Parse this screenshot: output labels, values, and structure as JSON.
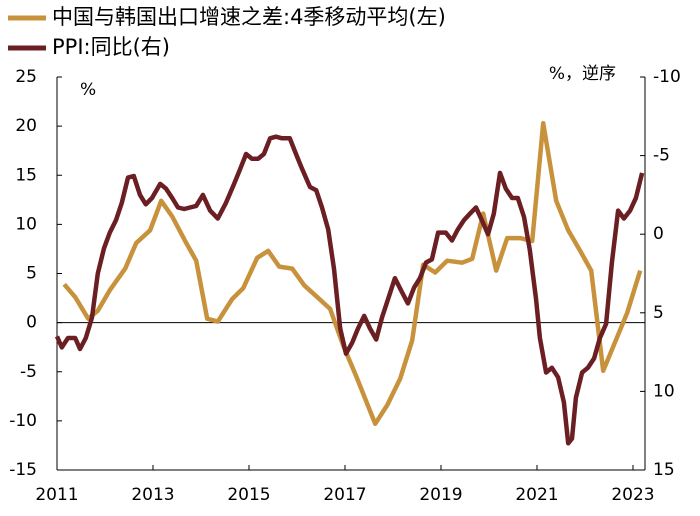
{
  "chart_data": {
    "type": "line",
    "y_label": "%",
    "y2_label": "%，逆序",
    "xlim": [
      2011,
      2023.25
    ],
    "xticks": [
      2011,
      2013,
      2015,
      2017,
      2019,
      2021,
      2023
    ],
    "ylim": [
      -15,
      25
    ],
    "yticks": [
      -15,
      -10,
      -5,
      0,
      5,
      10,
      15,
      20,
      25
    ],
    "y2lim": [
      15,
      -10
    ],
    "y2ticks": [
      -10,
      -5,
      0,
      5,
      10,
      15
    ],
    "legend": "top-left",
    "series": [
      {
        "name": "中国与韩国出口增速之差:4季移动平均(左)",
        "color": "#c8923c",
        "axis": "y",
        "x": [
          2011.15,
          2011.38,
          2011.65,
          2011.85,
          2012.1,
          2012.42,
          2012.65,
          2012.94,
          2013.17,
          2013.4,
          2013.67,
          2013.9,
          2014.13,
          2014.35,
          2014.65,
          2014.88,
          2015.17,
          2015.4,
          2015.63,
          2015.9,
          2016.15,
          2016.42,
          2016.69,
          2016.96,
          2017.23,
          2017.63,
          2017.88,
          2018.15,
          2018.4,
          2018.63,
          2018.88,
          2019.13,
          2019.44,
          2019.65,
          2019.88,
          2020.15,
          2020.38,
          2020.65,
          2020.9,
          2021.13,
          2021.4,
          2021.65,
          2021.9,
          2022.13,
          2022.38,
          2022.6,
          2022.88,
          2023.15
        ],
        "values": [
          3.9,
          2.6,
          0.4,
          1.2,
          3.3,
          5.5,
          8.1,
          9.4,
          12.4,
          10.8,
          8.3,
          6.3,
          0.4,
          0.1,
          2.4,
          3.5,
          6.6,
          7.3,
          5.7,
          5.5,
          3.8,
          2.6,
          1.4,
          -2.3,
          -5.4,
          -10.3,
          -8.4,
          -5.7,
          -1.8,
          5.9,
          5.1,
          6.3,
          6.1,
          6.5,
          11.1,
          5.3,
          8.6,
          8.6,
          8.3,
          20.3,
          12.4,
          9.4,
          7.3,
          5.3,
          -4.9,
          -2.3,
          1.0,
          5.3
        ]
      },
      {
        "name": "PPI:同比(右)",
        "color": "#6b1f23",
        "axis": "y2",
        "x": [
          2011.0,
          2011.1,
          2011.23,
          2011.38,
          2011.48,
          2011.6,
          2011.73,
          2011.85,
          2011.98,
          2012.1,
          2012.23,
          2012.35,
          2012.48,
          2012.6,
          2012.73,
          2012.85,
          2012.98,
          2013.15,
          2013.27,
          2013.4,
          2013.52,
          2013.65,
          2013.77,
          2013.9,
          2014.04,
          2014.19,
          2014.35,
          2014.52,
          2014.69,
          2014.81,
          2014.94,
          2015.06,
          2015.19,
          2015.31,
          2015.44,
          2015.56,
          2015.69,
          2015.85,
          2015.98,
          2016.1,
          2016.27,
          2016.4,
          2016.52,
          2016.65,
          2016.77,
          2016.9,
          2017.02,
          2017.15,
          2017.27,
          2017.4,
          2017.52,
          2017.65,
          2017.77,
          2017.9,
          2018.04,
          2018.19,
          2018.31,
          2018.44,
          2018.56,
          2018.69,
          2018.81,
          2018.94,
          2019.1,
          2019.23,
          2019.35,
          2019.48,
          2019.6,
          2019.73,
          2019.85,
          2019.98,
          2020.1,
          2020.23,
          2020.35,
          2020.48,
          2020.6,
          2020.73,
          2020.85,
          2020.98,
          2021.06,
          2021.19,
          2021.31,
          2021.44,
          2021.56,
          2021.65,
          2021.73,
          2021.81,
          2021.94,
          2022.06,
          2022.19,
          2022.31,
          2022.44,
          2022.56,
          2022.69,
          2022.81,
          2022.94,
          2023.06,
          2023.19
        ],
        "values": [
          6.5,
          7.2,
          6.6,
          6.6,
          7.3,
          6.6,
          5.3,
          2.5,
          0.9,
          -0.1,
          -0.9,
          -2.0,
          -3.6,
          -3.7,
          -2.5,
          -1.9,
          -2.3,
          -3.2,
          -2.9,
          -2.3,
          -1.7,
          -1.6,
          -1.7,
          -1.8,
          -2.5,
          -1.5,
          -1.0,
          -2.0,
          -3.2,
          -4.1,
          -5.1,
          -4.8,
          -4.8,
          -5.1,
          -6.1,
          -6.2,
          -6.1,
          -6.1,
          -5.1,
          -4.2,
          -3.0,
          -2.8,
          -1.7,
          -0.3,
          2.2,
          6.0,
          7.6,
          6.9,
          6.0,
          5.2,
          6.0,
          6.7,
          5.3,
          4.1,
          2.8,
          3.7,
          4.4,
          3.4,
          2.8,
          1.8,
          1.6,
          -0.1,
          -0.1,
          0.4,
          -0.3,
          -0.9,
          -1.3,
          -1.7,
          -0.9,
          0.0,
          -1.3,
          -3.9,
          -2.9,
          -2.3,
          -2.3,
          -1.1,
          1.0,
          4.1,
          6.6,
          8.8,
          8.5,
          9.1,
          10.7,
          13.3,
          13.0,
          10.4,
          8.8,
          8.5,
          7.9,
          6.6,
          5.7,
          1.8,
          -1.5,
          -1.0,
          -1.5,
          -2.3,
          -3.9
        ]
      }
    ]
  }
}
